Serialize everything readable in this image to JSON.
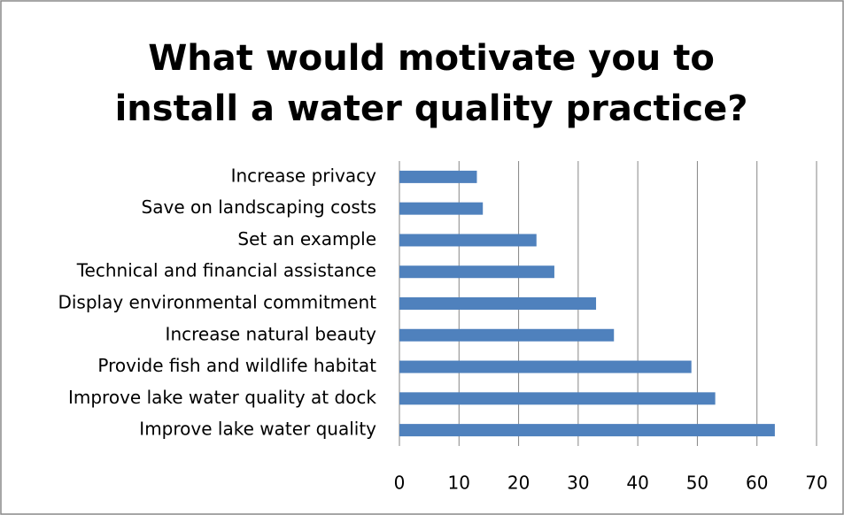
{
  "chart_data": {
    "type": "barh",
    "title": "What would motivate you to install a water quality practice?",
    "categories": [
      "Increase privacy",
      "Save on landscaping costs",
      "Set an example",
      "Technical and financial assistance",
      "Display environmental commitment",
      "Increase natural beauty",
      "Provide fish and wildlife habitat",
      "Improve lake water quality at dock",
      "Improve lake water quality"
    ],
    "values": [
      13,
      14,
      23,
      26,
      33,
      36,
      49,
      53,
      63
    ],
    "color": "#4f81bd",
    "xlim": [
      0,
      70
    ],
    "xticks": [
      0,
      10,
      20,
      30,
      40,
      50,
      60,
      70
    ],
    "grid": true
  }
}
